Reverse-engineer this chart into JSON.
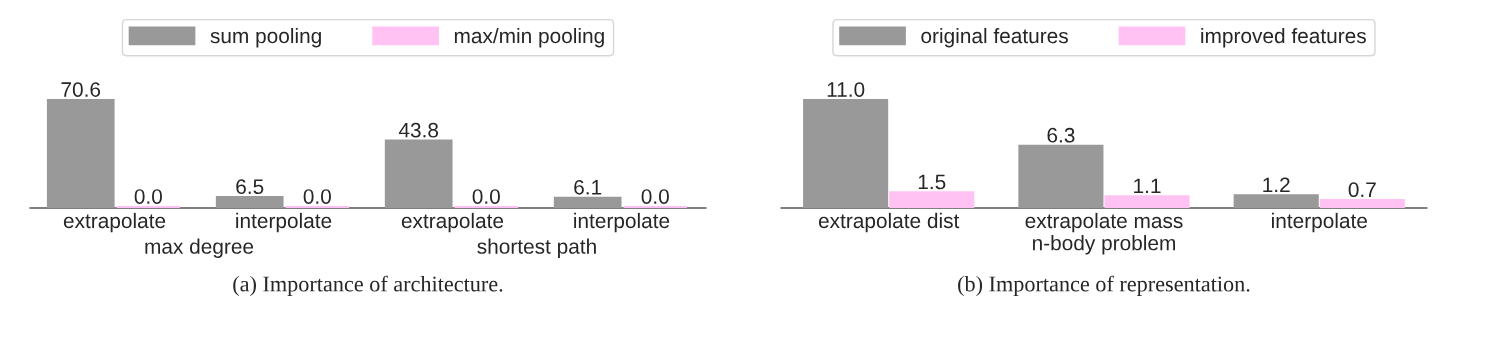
{
  "chart_data": [
    {
      "type": "bar",
      "title": "(a) Importance of architecture.",
      "categories": [
        "extrapolate",
        "interpolate",
        "extrapolate",
        "interpolate"
      ],
      "series": [
        {
          "name": "sum pooling",
          "color": "#999999",
          "values": [
            70.6,
            6.5,
            43.8,
            6.1
          ],
          "value_labels": [
            "70.6",
            "6.5",
            "43.8",
            "6.1"
          ]
        },
        {
          "name": "max/min pooling",
          "color": "#ffc2f2",
          "values": [
            0.0,
            0.0,
            0.0,
            0.0
          ],
          "value_labels": [
            "0.0",
            "0.0",
            "0.0",
            "0.0"
          ]
        }
      ],
      "annotations": [
        "max degree",
        "shortest path"
      ],
      "data_labels": true,
      "legend": "top",
      "tick_labels": "x"
    },
    {
      "type": "bar",
      "title": "(b) Importance of representation.",
      "xlabel": "n-body problem",
      "categories": [
        "extrapolate dist",
        "extrapolate mass",
        "interpolate"
      ],
      "series": [
        {
          "name": "original features",
          "color": "#999999",
          "values": [
            11.0,
            6.3,
            1.2
          ],
          "value_labels": [
            "11.0",
            "6.3",
            "1.2"
          ]
        },
        {
          "name": "improved features",
          "color": "#ffc2f2",
          "values": [
            1.5,
            1.1,
            0.7
          ],
          "value_labels": [
            "1.5",
            "1.1",
            "0.7"
          ]
        }
      ],
      "data_labels": true,
      "legend": "top",
      "tick_labels": "x"
    }
  ]
}
